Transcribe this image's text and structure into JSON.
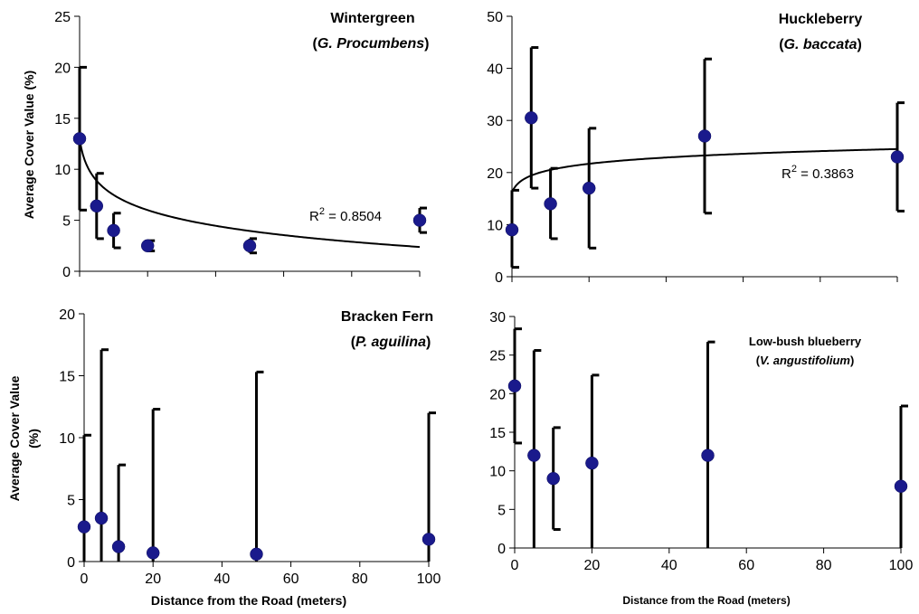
{
  "chart_data": [
    {
      "type": "scatter",
      "title": "Wintergreen",
      "subtitle": "G. Procumbens",
      "ylabel": "Average Cover Value (%)",
      "xlabel": "",
      "xlim": [
        0,
        100
      ],
      "ylim": [
        0,
        25
      ],
      "yticks": [
        "0",
        "5",
        "10",
        "15",
        "20",
        "25"
      ],
      "xticks": [],
      "x": [
        0,
        5,
        10,
        20,
        50,
        100
      ],
      "y": [
        13,
        6.4,
        4,
        2.5,
        2.5,
        5
      ],
      "err_low": [
        6,
        3.2,
        2.3,
        2,
        1.8,
        3.8
      ],
      "err_high": [
        20,
        9.6,
        5.7,
        3,
        3.2,
        6.2
      ],
      "trendline": {
        "type": "log",
        "a": 13,
        "b": -2.3
      },
      "r2_label": "R",
      "r2_sup": "2",
      "r2_value": " = 0.8504",
      "marker_color": "#1a1a8c"
    },
    {
      "type": "scatter",
      "title": "Huckleberry",
      "subtitle": "G. baccata",
      "ylabel": "",
      "xlabel": "",
      "xlim": [
        0,
        100
      ],
      "ylim": [
        0,
        50
      ],
      "yticks": [
        "0",
        "10",
        "20",
        "30",
        "40",
        "50"
      ],
      "xticks": [],
      "x": [
        0,
        5,
        10,
        20,
        50,
        100
      ],
      "y": [
        9,
        30.5,
        14,
        17,
        27,
        23
      ],
      "err_low": [
        1.8,
        17,
        7.3,
        5.5,
        12.2,
        12.6
      ],
      "err_high": [
        16.6,
        44,
        20.8,
        28.5,
        41.8,
        33.4
      ],
      "trendline": {
        "type": "log",
        "a": 16.2,
        "b": 1.8
      },
      "r2_label": "R",
      "r2_sup": "2",
      "r2_value": " = 0.3863",
      "marker_color": "#1a1a8c"
    },
    {
      "type": "scatter",
      "title": "Bracken Fern",
      "subtitle": "P. aguilina",
      "ylabel_line1": "Average Cover Value",
      "ylabel_line2": "(%)",
      "xlabel": "Distance from the Road (meters)",
      "xlim": [
        0,
        100
      ],
      "ylim": [
        0,
        20
      ],
      "yticks": [
        "0",
        "5",
        "10",
        "15",
        "20"
      ],
      "xticks": [
        "0",
        "20",
        "40",
        "60",
        "80",
        "100"
      ],
      "x": [
        0,
        5,
        10,
        20,
        50,
        100
      ],
      "y": [
        2.8,
        3.5,
        1.2,
        0.7,
        0.6,
        1.8
      ],
      "err_low": [
        0,
        0,
        0,
        0,
        0,
        0
      ],
      "err_high": [
        10.2,
        17.1,
        7.8,
        12.3,
        15.3,
        12
      ],
      "marker_color": "#1a1a8c"
    },
    {
      "type": "scatter",
      "title": "Low-bush blueberry",
      "subtitle": "V. angustifolium",
      "ylabel": "",
      "xlabel": "Distance from the Road (meters)",
      "xlim": [
        0,
        100
      ],
      "ylim": [
        0,
        30
      ],
      "yticks": [
        "0",
        "5",
        "10",
        "15",
        "20",
        "25",
        "30"
      ],
      "xticks": [
        "0",
        "20",
        "40",
        "60",
        "80",
        "100"
      ],
      "x": [
        0,
        5,
        10,
        20,
        50,
        100
      ],
      "y": [
        21,
        12,
        9,
        11,
        12,
        8
      ],
      "err_low": [
        13.6,
        0,
        2.4,
        0,
        0,
        0
      ],
      "err_high": [
        28.4,
        25.6,
        15.6,
        22.4,
        26.7,
        18.4
      ],
      "marker_color": "#1a1a8c"
    }
  ]
}
